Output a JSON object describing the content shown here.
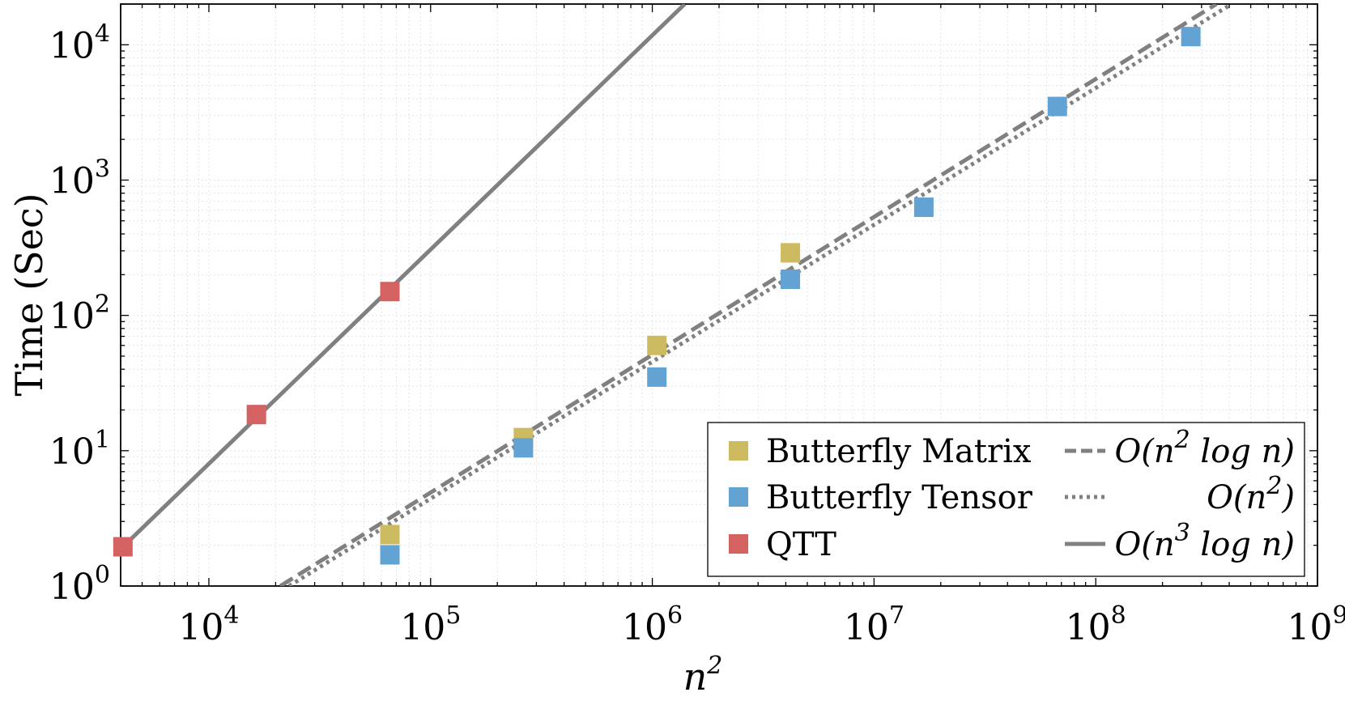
{
  "chart_data": {
    "type": "scatter",
    "xscale": "log",
    "yscale": "log",
    "xlim": [
      4000,
      1000000000
    ],
    "ylim": [
      1,
      20000
    ],
    "xlabel": "n²",
    "ylabel": "Time (Sec)",
    "grid": true,
    "legend_position": "bottom-right",
    "x_ticks": [
      {
        "base": "10",
        "exp": "4",
        "value": 10000
      },
      {
        "base": "10",
        "exp": "5",
        "value": 100000
      },
      {
        "base": "10",
        "exp": "6",
        "value": 1000000
      },
      {
        "base": "10",
        "exp": "7",
        "value": 10000000
      },
      {
        "base": "10",
        "exp": "8",
        "value": 100000000
      },
      {
        "base": "10",
        "exp": "9",
        "value": 1000000000
      }
    ],
    "y_ticks": [
      {
        "base": "10",
        "exp": "0",
        "value": 1
      },
      {
        "base": "10",
        "exp": "1",
        "value": 10
      },
      {
        "base": "10",
        "exp": "2",
        "value": 100
      },
      {
        "base": "10",
        "exp": "3",
        "value": 1000
      },
      {
        "base": "10",
        "exp": "4",
        "value": 10000
      }
    ],
    "series": [
      {
        "name": "Butterfly Matrix",
        "kind": "markers",
        "color": "#cdbb62",
        "x": [
          65536,
          262144,
          1048576,
          4194304
        ],
        "y": [
          2.4,
          12.5,
          60,
          290
        ]
      },
      {
        "name": "Butterfly Tensor",
        "kind": "markers",
        "color": "#62a3d4",
        "x": [
          65536,
          262144,
          1048576,
          4194304,
          16777216,
          67108864,
          268435456
        ],
        "y": [
          1.7,
          10.5,
          35,
          185,
          630,
          3500,
          11500
        ]
      },
      {
        "name": "QTT",
        "kind": "markers",
        "color": "#d46262",
        "x": [
          4096,
          16384,
          65536
        ],
        "y": [
          1.95,
          18.5,
          150
        ]
      },
      {
        "name": "O(n² log n)",
        "label_prefix": "O(n",
        "label_exp": "2",
        "label_suffix": " log n)",
        "kind": "line",
        "dash": "dashed",
        "color": "#808080",
        "x": [
          21000,
          350000000
        ],
        "y": [
          1,
          20000
        ]
      },
      {
        "name": "O(n²)",
        "label_prefix": "O(n",
        "label_exp": "2",
        "label_suffix": ")",
        "kind": "line",
        "dash": "dotted",
        "color": "#808080",
        "x": [
          23000,
          410000000
        ],
        "y": [
          1,
          20000
        ]
      },
      {
        "name": "O(n³ log n)",
        "label_prefix": "O(n",
        "label_exp": "3",
        "label_suffix": " log n)",
        "kind": "line",
        "dash": "solid",
        "color": "#808080",
        "x": [
          4096,
          1400000
        ],
        "y": [
          1.95,
          20000
        ]
      }
    ]
  },
  "labels": {
    "ylabel": "Time (Sec)",
    "xlabel_base": "n",
    "xlabel_exp": "2"
  }
}
